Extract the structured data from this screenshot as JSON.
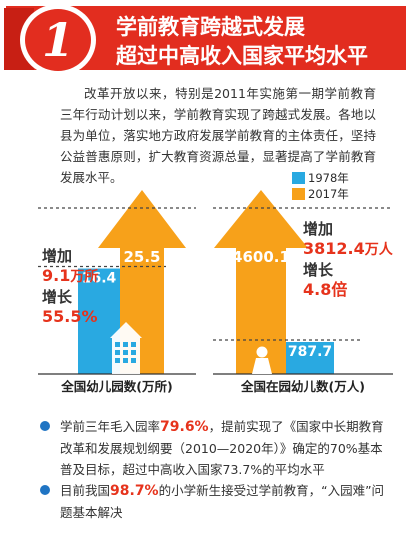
{
  "header": {
    "number": "1",
    "title_line1": "学前教育跨越式发展",
    "title_line2": "超过中高收入国家平均水平"
  },
  "intro": "改革开放以来，特别是2011年实施第一期学前教育三年行动计划以来，学前教育实现了跨越式发展。各地以县为单位，落实地方政府发展学前教育的主体责任，坚持公益普惠原则，扩大教育资源总量，显著提高了学前教育发展水平。",
  "legend": [
    {
      "label": "1978年",
      "color": "#29a9e1"
    },
    {
      "label": "2017年",
      "color": "#f7a11a"
    }
  ],
  "chart_data": {
    "type": "bar",
    "series": [
      {
        "name": "1978年",
        "color": "#29a9e1"
      },
      {
        "name": "2017年",
        "color": "#f7a11a"
      }
    ],
    "panels": [
      {
        "category": "全国幼儿园数(万所)",
        "values": {
          "1978年": 16.4,
          "2017年": 25.5
        },
        "labels": {
          "1978年": "16.4",
          "2017年": "25.5"
        },
        "annotation": {
          "label1": "增加",
          "value1": "9.1",
          "unit1": "万所",
          "label2": "增长",
          "value2": "55.5%"
        }
      },
      {
        "category": "全国在园幼儿数(万人)",
        "values": {
          "1978年": 787.7,
          "2017年": 4600.1
        },
        "labels": {
          "1978年": "787.7",
          "2017年": "4600.1"
        },
        "annotation": {
          "label1": "增加",
          "value1": "3812.4",
          "unit1": "万人",
          "label2": "增长",
          "value2": "4.8倍"
        }
      }
    ]
  },
  "notes": [
    {
      "pre": "学前三年毛入园率",
      "hl": "79.6%",
      "post": "，提前实现了《国家中长期教育改革和发展规划纲要（2010—2020年）》确定的70%基本普及目标，超过中高收入国家73.7%的平均水平"
    },
    {
      "pre": "目前我国",
      "hl": "98.7%",
      "post": "的小学新生接受过学前教育，“入园难”问题基本解决"
    }
  ]
}
